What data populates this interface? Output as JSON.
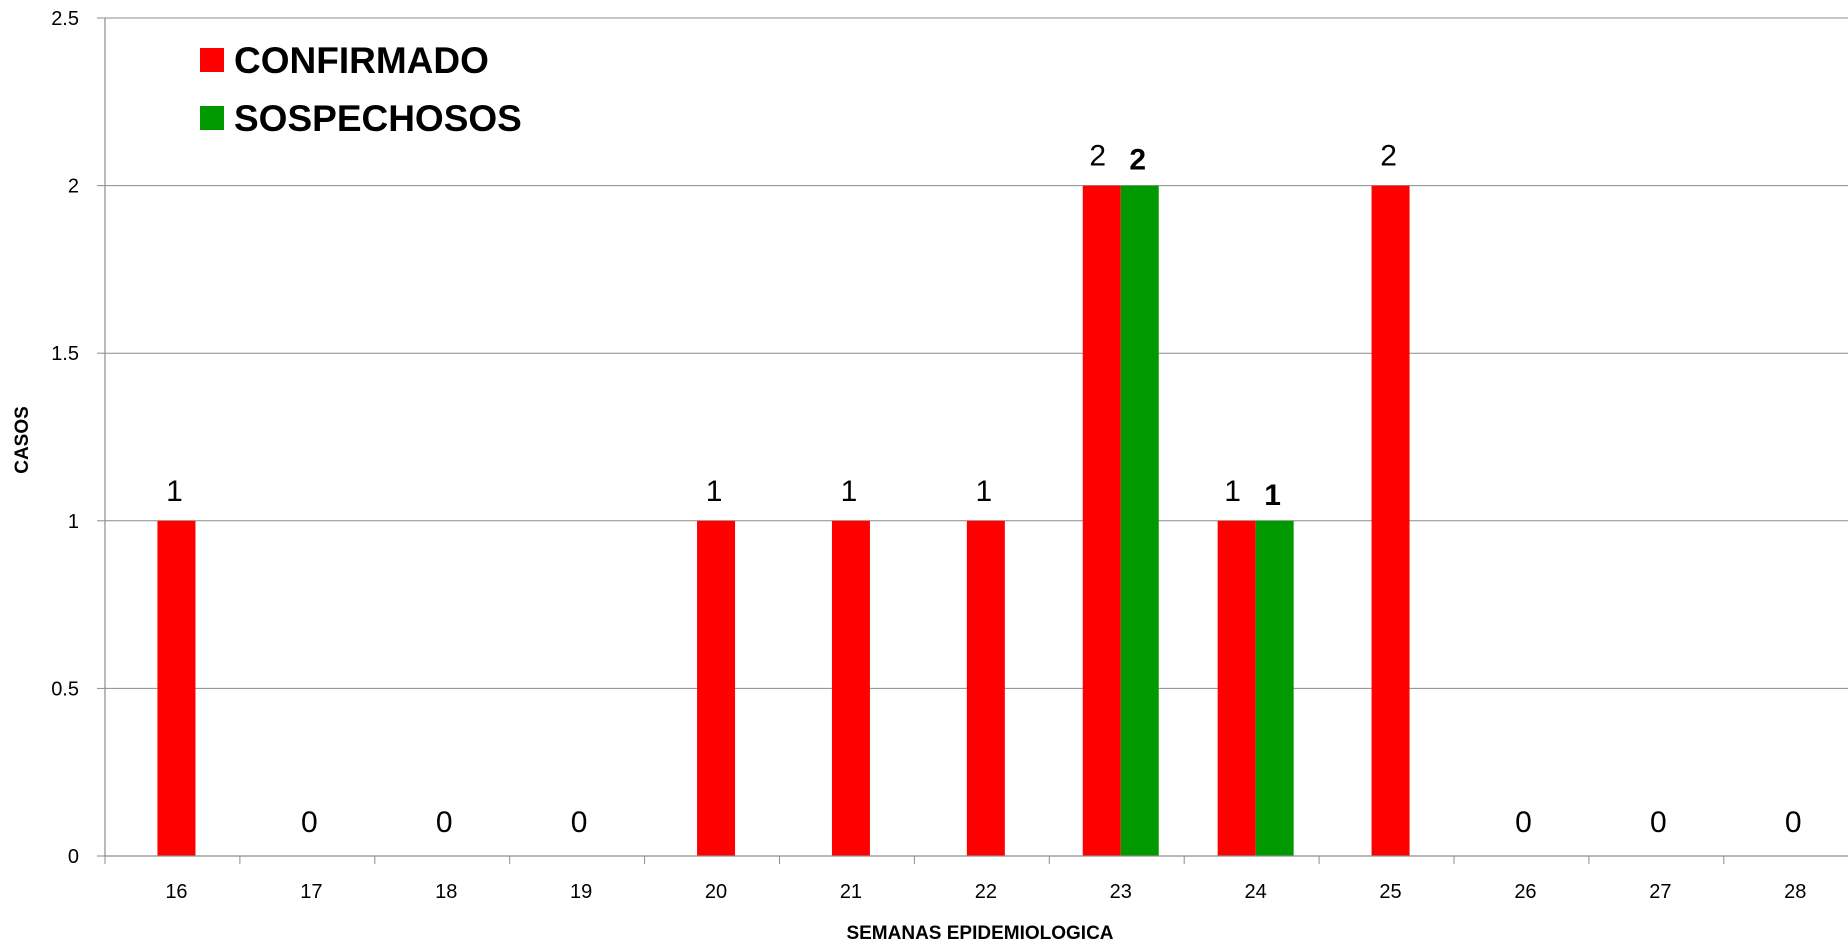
{
  "chart_data": {
    "type": "bar",
    "title": "",
    "xlabel": "SEMANAS EPIDEMIOLOGICA",
    "ylabel": "CASOS",
    "categories": [
      "16",
      "17",
      "18",
      "19",
      "20",
      "21",
      "22",
      "23",
      "24",
      "25",
      "26",
      "27",
      "28"
    ],
    "ylim": [
      0,
      2.5
    ],
    "yticks": [
      "0",
      "0.5",
      "1",
      "1.5",
      "2",
      "2.5"
    ],
    "grid": true,
    "legend_position": "top-left",
    "series": [
      {
        "name": "CONFIRMADO",
        "color": "#ff0000",
        "values": [
          1,
          0,
          0,
          0,
          1,
          1,
          1,
          2,
          1,
          2,
          0,
          0,
          0
        ],
        "labels": [
          "1",
          "0",
          "0",
          "0",
          "1",
          "1",
          "1",
          "2",
          "1",
          "2",
          "0",
          "0",
          "0"
        ]
      },
      {
        "name": "SOSPECHOSOS",
        "color": "#009900",
        "values": [
          null,
          null,
          null,
          null,
          null,
          null,
          null,
          2,
          1,
          null,
          null,
          null,
          null
        ],
        "labels": [
          null,
          null,
          null,
          null,
          null,
          null,
          null,
          "2",
          "1",
          null,
          null,
          null,
          null
        ]
      }
    ]
  }
}
